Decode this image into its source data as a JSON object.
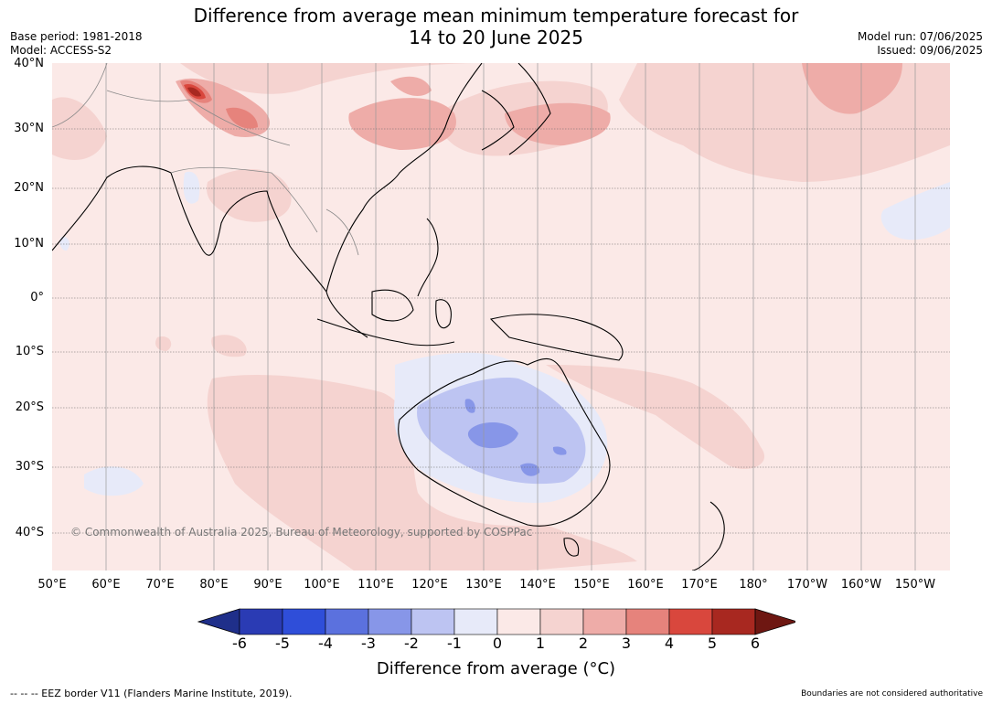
{
  "title": {
    "line1": "Difference from average mean minimum temperature forecast for",
    "line2": "14 to 20 June 2025"
  },
  "meta": {
    "base_period": "Base period: 1981-2018",
    "model": "Model: ACCESS-S2",
    "model_run": "Model run: 07/06/2025",
    "issued": "Issued: 09/06/2025"
  },
  "map": {
    "lat_labels": [
      "40°N",
      "30°N",
      "20°N",
      "10°N",
      "0°",
      "10°S",
      "20°S",
      "30°S",
      "40°S"
    ],
    "lon_labels": [
      "50°E",
      "60°E",
      "70°E",
      "80°E",
      "90°E",
      "100°E",
      "110°E",
      "120°E",
      "130°E",
      "140°E",
      "150°E",
      "160°E",
      "170°E",
      "180°",
      "170°W",
      "160°W",
      "150°W"
    ],
    "copyright": "© Commonwealth of Australia 2025, Bureau of Meteorology, supported by COSPPac",
    "background_color": "#fbe9e7",
    "land_color": "#000000"
  },
  "colorbar": {
    "ticks": [
      "-6",
      "-5",
      "-4",
      "-3",
      "-2",
      "-1",
      "0",
      "1",
      "2",
      "3",
      "4",
      "5",
      "6"
    ],
    "colors": [
      "#1f2f8a",
      "#2a3bb4",
      "#2f4ed9",
      "#5b71de",
      "#8796e8",
      "#bdc4f2",
      "#e7eaf9",
      "#fbe9e7",
      "#f5d3d0",
      "#eeaca8",
      "#e6837c",
      "#d9473d",
      "#a82820",
      "#6e1712"
    ],
    "label": "Difference from average (°C)"
  },
  "footer": {
    "left": "-- -- -- EEZ border V11 (Flanders Marine Institute, 2019).",
    "right": "Boundaries are not considered authoritative"
  }
}
